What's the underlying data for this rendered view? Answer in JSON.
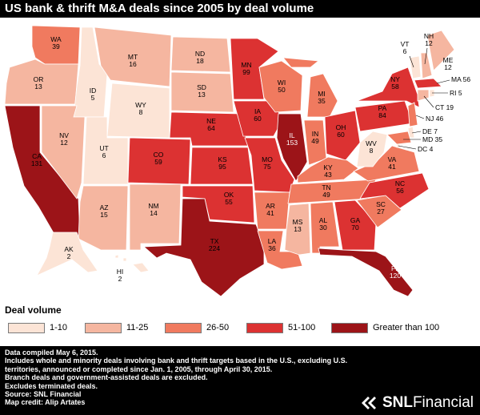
{
  "title": "US bank & thrift M&A deals since 2005 by deal volume",
  "legend": {
    "title": "Deal volume",
    "items": [
      {
        "label": "1-10",
        "color": "#fce4d6"
      },
      {
        "label": "11-25",
        "color": "#f5b6a0"
      },
      {
        "label": "26-50",
        "color": "#f07a5f"
      },
      {
        "label": "51-100",
        "color": "#dc3232"
      },
      {
        "label": "Greater than 100",
        "color": "#9c1418"
      }
    ]
  },
  "states": [
    {
      "abbr": "WA",
      "value": 39,
      "bin": 2
    },
    {
      "abbr": "OR",
      "value": 13,
      "bin": 1
    },
    {
      "abbr": "CA",
      "value": 131,
      "bin": 4
    },
    {
      "abbr": "ID",
      "value": 5,
      "bin": 0
    },
    {
      "abbr": "NV",
      "value": 12,
      "bin": 1
    },
    {
      "abbr": "MT",
      "value": 16,
      "bin": 1
    },
    {
      "abbr": "WY",
      "value": 8,
      "bin": 0
    },
    {
      "abbr": "UT",
      "value": 6,
      "bin": 0
    },
    {
      "abbr": "AZ",
      "value": 15,
      "bin": 1
    },
    {
      "abbr": "CO",
      "value": 59,
      "bin": 3
    },
    {
      "abbr": "NM",
      "value": 14,
      "bin": 1
    },
    {
      "abbr": "ND",
      "value": 18,
      "bin": 1
    },
    {
      "abbr": "SD",
      "value": 13,
      "bin": 1
    },
    {
      "abbr": "NE",
      "value": 64,
      "bin": 3
    },
    {
      "abbr": "KS",
      "value": 95,
      "bin": 3
    },
    {
      "abbr": "OK",
      "value": 55,
      "bin": 3
    },
    {
      "abbr": "TX",
      "value": 224,
      "bin": 4
    },
    {
      "abbr": "MN",
      "value": 99,
      "bin": 3
    },
    {
      "abbr": "IA",
      "value": 60,
      "bin": 3
    },
    {
      "abbr": "MO",
      "value": 75,
      "bin": 3
    },
    {
      "abbr": "AR",
      "value": 41,
      "bin": 2
    },
    {
      "abbr": "LA",
      "value": 36,
      "bin": 2
    },
    {
      "abbr": "WI",
      "value": 50,
      "bin": 2
    },
    {
      "abbr": "IL",
      "value": 153,
      "bin": 4
    },
    {
      "abbr": "MI",
      "value": 35,
      "bin": 2
    },
    {
      "abbr": "IN",
      "value": 49,
      "bin": 2
    },
    {
      "abbr": "OH",
      "value": 60,
      "bin": 3
    },
    {
      "abbr": "KY",
      "value": 43,
      "bin": 2
    },
    {
      "abbr": "TN",
      "value": 49,
      "bin": 2
    },
    {
      "abbr": "MS",
      "value": 13,
      "bin": 1
    },
    {
      "abbr": "AL",
      "value": 30,
      "bin": 2
    },
    {
      "abbr": "GA",
      "value": 70,
      "bin": 3
    },
    {
      "abbr": "FL",
      "value": 120,
      "bin": 4
    },
    {
      "abbr": "SC",
      "value": 27,
      "bin": 2
    },
    {
      "abbr": "NC",
      "value": 56,
      "bin": 3
    },
    {
      "abbr": "VA",
      "value": 41,
      "bin": 2
    },
    {
      "abbr": "WV",
      "value": 8,
      "bin": 0
    },
    {
      "abbr": "PA",
      "value": 84,
      "bin": 3
    },
    {
      "abbr": "NY",
      "value": 58,
      "bin": 3
    },
    {
      "abbr": "VT",
      "value": 6,
      "bin": 0
    },
    {
      "abbr": "NH",
      "value": 12,
      "bin": 1
    },
    {
      "abbr": "ME",
      "value": 12,
      "bin": 1
    },
    {
      "abbr": "MA",
      "value": 56,
      "bin": 3
    },
    {
      "abbr": "RI",
      "value": 5,
      "bin": 0
    },
    {
      "abbr": "CT",
      "value": 19,
      "bin": 1
    },
    {
      "abbr": "NJ",
      "value": 46,
      "bin": 2
    },
    {
      "abbr": "DE",
      "value": 7,
      "bin": 0
    },
    {
      "abbr": "MD",
      "value": 35,
      "bin": 2
    },
    {
      "abbr": "DC",
      "value": 4,
      "bin": 0
    },
    {
      "abbr": "AK",
      "value": 2,
      "bin": 0
    },
    {
      "abbr": "HI",
      "value": 2,
      "bin": 0
    }
  ],
  "notes": [
    "Data compiled May 6, 2015.",
    "Includes whole and minority deals involving bank and thrift targets based in the U.S., excluding U.S. territories, announced or completed since Jan. 1, 2005, through April 30, 2015.",
    "Branch deals and government-assisted deals are excluded.",
    "Excludes terminated deals.",
    "Source: SNL Financial",
    "Map credit: Alip Artates"
  ],
  "brand": {
    "bold": "SNL",
    "rest": "Financial"
  }
}
